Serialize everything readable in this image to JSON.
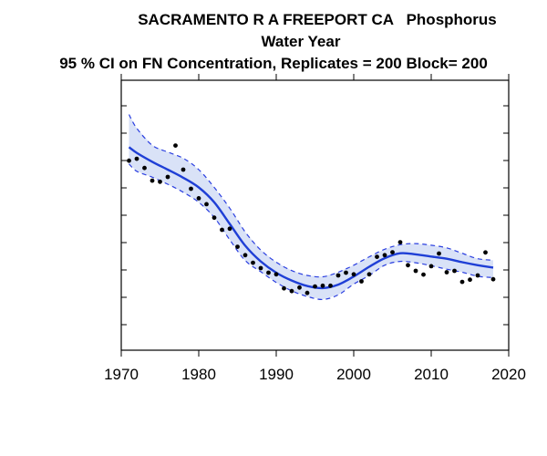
{
  "chart_data": {
    "type": "line",
    "title": "SACRAMENTO R A FREEPORT CA   Phosphorus",
    "subtitle": "Water Year",
    "subtitle2": "95 % CI on FN Concentration, Replicates = 200 Block= 200",
    "xlabel": "",
    "ylabel": "",
    "xlim": [
      1970,
      2020
    ],
    "xticks": [
      1970,
      1980,
      1990,
      2000,
      2010,
      2020
    ],
    "ylim": [
      0,
      1
    ],
    "grid": false,
    "legend": "none",
    "colors": {
      "line": "#1f3fd6",
      "band": "#d9e2f7",
      "band_edge": "#2b3fe0",
      "points": "#000000"
    },
    "series": [
      {
        "type": "line",
        "x": [
          1971,
          1972,
          1974,
          1976,
          1978,
          1980,
          1982,
          1984,
          1986,
          1988,
          1990,
          1992,
          1994,
          1996,
          1998,
          2000,
          2002,
          2004,
          2006,
          2008,
          2010,
          2012,
          2014,
          2016,
          2018
        ],
        "y": [
          0.752,
          0.731,
          0.698,
          0.669,
          0.639,
          0.603,
          0.548,
          0.468,
          0.387,
          0.329,
          0.287,
          0.258,
          0.238,
          0.23,
          0.243,
          0.273,
          0.309,
          0.341,
          0.359,
          0.355,
          0.347,
          0.339,
          0.326,
          0.315,
          0.306
        ]
      },
      {
        "type": "band_upper",
        "x": [
          1971,
          1972,
          1974,
          1976,
          1978,
          1980,
          1982,
          1984,
          1986,
          1988,
          1990,
          1992,
          1994,
          1996,
          1998,
          2000,
          2002,
          2004,
          2006,
          2008,
          2010,
          2012,
          2014,
          2016,
          2018
        ],
        "y": [
          0.873,
          0.822,
          0.759,
          0.734,
          0.711,
          0.669,
          0.603,
          0.526,
          0.438,
          0.371,
          0.326,
          0.295,
          0.277,
          0.272,
          0.289,
          0.315,
          0.346,
          0.374,
          0.391,
          0.395,
          0.389,
          0.379,
          0.359,
          0.339,
          0.333
        ]
      },
      {
        "type": "band_lower",
        "x": [
          1971,
          1972,
          1974,
          1976,
          1978,
          1980,
          1982,
          1984,
          1986,
          1988,
          1990,
          1992,
          1994,
          1996,
          1998,
          2000,
          2002,
          2004,
          2006,
          2008,
          2010,
          2012,
          2014,
          2016,
          2018
        ],
        "y": [
          0.69,
          0.663,
          0.641,
          0.615,
          0.585,
          0.548,
          0.492,
          0.409,
          0.332,
          0.291,
          0.251,
          0.22,
          0.199,
          0.188,
          0.205,
          0.245,
          0.277,
          0.315,
          0.329,
          0.324,
          0.313,
          0.3,
          0.289,
          0.274,
          0.269
        ]
      },
      {
        "type": "scatter",
        "x": [
          1971,
          1972,
          1973,
          1974,
          1975,
          1976,
          1977,
          1978,
          1979,
          1980,
          1981,
          1982,
          1983,
          1984,
          1985,
          1986,
          1987,
          1988,
          1989,
          1990,
          1991,
          1992,
          1993,
          1994,
          1995,
          1996,
          1997,
          1998,
          1999,
          2000,
          2001,
          2002,
          2003,
          2004,
          2005,
          2006,
          2007,
          2008,
          2009,
          2010,
          2011,
          2012,
          2013,
          2014,
          2015,
          2016,
          2017,
          2018
        ],
        "y": [
          0.702,
          0.709,
          0.675,
          0.628,
          0.624,
          0.642,
          0.758,
          0.669,
          0.598,
          0.563,
          0.541,
          0.491,
          0.446,
          0.45,
          0.383,
          0.352,
          0.324,
          0.304,
          0.287,
          0.281,
          0.229,
          0.219,
          0.232,
          0.212,
          0.236,
          0.239,
          0.239,
          0.277,
          0.287,
          0.281,
          0.255,
          0.281,
          0.346,
          0.352,
          0.363,
          0.4,
          0.315,
          0.294,
          0.28,
          0.311,
          0.358,
          0.289,
          0.294,
          0.253,
          0.261,
          0.277,
          0.362,
          0.263
        ]
      }
    ]
  }
}
